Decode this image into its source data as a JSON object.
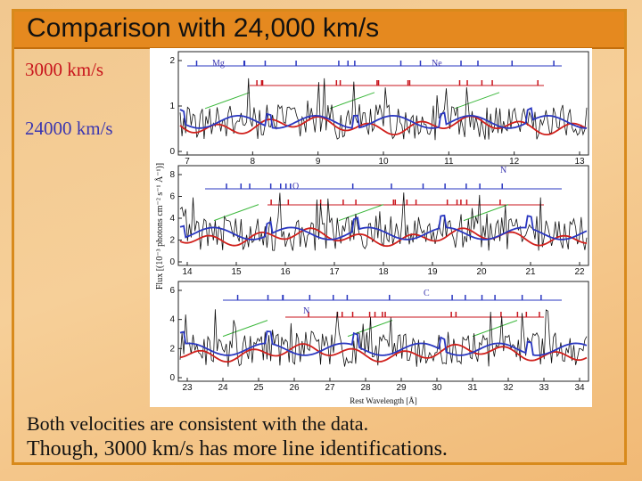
{
  "slide": {
    "title": "Comparison with 24,000 km/s",
    "legend_slow": "3000 km/s",
    "legend_fast": "24000 km/s",
    "caption_line1": "Both velocities are consistent with the data.",
    "caption_line2": "Though, 3000 km/s has more line identifications.",
    "colors": {
      "title_bar": "#e5891f",
      "slow": "#c8141c",
      "fast": "#3b36b0"
    }
  },
  "figure": {
    "ylabel": "Flux [(10⁻³ photons cm⁻² s⁻¹ Å⁻¹)]",
    "xlabel": "Rest Wavelength [Å]",
    "panels": [
      {
        "xticks": [
          "7",
          "8",
          "9",
          "10",
          "11",
          "12",
          "13"
        ],
        "yticks": [
          "0",
          "1",
          "2"
        ],
        "ions": [
          "Mg",
          "Ne"
        ]
      },
      {
        "xticks": [
          "14",
          "15",
          "16",
          "17",
          "18",
          "19",
          "20",
          "21",
          "22"
        ],
        "yticks": [
          "0",
          "2",
          "4",
          "6",
          "8"
        ],
        "ions": [
          "O",
          "N"
        ]
      },
      {
        "xticks": [
          "23",
          "24",
          "25",
          "26",
          "27",
          "28",
          "29",
          "30",
          "31",
          "32",
          "33",
          "34"
        ],
        "yticks": [
          "0",
          "2",
          "4",
          "6"
        ],
        "ions": [
          "C",
          "N"
        ]
      }
    ]
  }
}
